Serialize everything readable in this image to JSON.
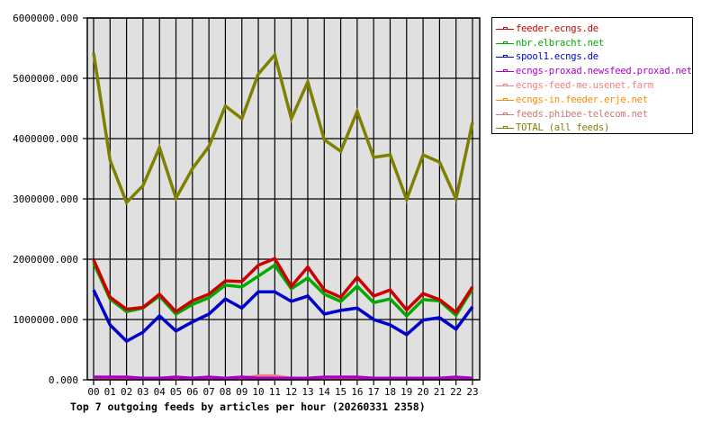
{
  "chart_data": {
    "type": "line",
    "title": "Top 7 outgoing feeds by articles per hour (20260331 2358)",
    "xlabel": "",
    "ylabel": "",
    "ylim": [
      0,
      6000000
    ],
    "yticks": [
      "0.000",
      "1000000.000",
      "2000000.000",
      "3000000.000",
      "4000000.000",
      "5000000.000",
      "6000000.000"
    ],
    "grid": true,
    "legend_position": "right",
    "categories": [
      "00",
      "01",
      "02",
      "03",
      "04",
      "05",
      "06",
      "07",
      "08",
      "09",
      "10",
      "11",
      "12",
      "13",
      "14",
      "15",
      "16",
      "17",
      "18",
      "19",
      "20",
      "21",
      "22",
      "23"
    ],
    "series": [
      {
        "name": "feeder.ecngs.de",
        "color": "#cc0000",
        "values": [
          1990000,
          1370000,
          1170000,
          1200000,
          1420000,
          1130000,
          1310000,
          1420000,
          1640000,
          1630000,
          1900000,
          2010000,
          1550000,
          1870000,
          1490000,
          1370000,
          1700000,
          1390000,
          1490000,
          1160000,
          1430000,
          1330000,
          1120000,
          1540000
        ]
      },
      {
        "name": "nbr.elbracht.net",
        "color": "#00aa00",
        "values": [
          1940000,
          1340000,
          1130000,
          1190000,
          1390000,
          1090000,
          1250000,
          1360000,
          1570000,
          1540000,
          1720000,
          1900000,
          1510000,
          1690000,
          1420000,
          1300000,
          1550000,
          1280000,
          1340000,
          1060000,
          1330000,
          1310000,
          1070000,
          1510000
        ]
      },
      {
        "name": "spool1.ecngs.de",
        "color": "#0000cc",
        "values": [
          1490000,
          910000,
          640000,
          790000,
          1060000,
          810000,
          960000,
          1090000,
          1340000,
          1190000,
          1460000,
          1460000,
          1300000,
          1390000,
          1090000,
          1150000,
          1190000,
          1000000,
          910000,
          750000,
          990000,
          1030000,
          840000,
          1210000
        ]
      },
      {
        "name": "ecngs-proxad.newsfeed.proxad.net",
        "color": "#aa00cc",
        "values": [
          45000,
          45000,
          45000,
          25000,
          25000,
          45000,
          25000,
          45000,
          25000,
          45000,
          25000,
          25000,
          25000,
          25000,
          45000,
          45000,
          45000,
          25000,
          25000,
          25000,
          25000,
          25000,
          45000,
          25000
        ]
      },
      {
        "name": "ecngs-feed-me.usenet.farm",
        "color": "#f08080",
        "values": [
          25000,
          25000,
          25000,
          25000,
          25000,
          25000,
          25000,
          25000,
          25000,
          25000,
          65000,
          65000,
          25000,
          25000,
          25000,
          25000,
          25000,
          25000,
          25000,
          25000,
          25000,
          25000,
          25000,
          25000
        ]
      },
      {
        "name": "ecngs-in.feeder.erje.net",
        "color": "#ff8800",
        "values": [
          15000,
          15000,
          15000,
          15000,
          15000,
          15000,
          15000,
          15000,
          15000,
          15000,
          15000,
          15000,
          15000,
          15000,
          15000,
          15000,
          15000,
          15000,
          15000,
          15000,
          15000,
          15000,
          15000,
          15000
        ]
      },
      {
        "name": "feeds.phibee-telecom.net",
        "color": "#cc7777",
        "values": [
          20000,
          20000,
          20000,
          20000,
          20000,
          20000,
          20000,
          20000,
          20000,
          20000,
          20000,
          20000,
          20000,
          20000,
          20000,
          20000,
          20000,
          20000,
          20000,
          20000,
          20000,
          20000,
          20000,
          20000
        ]
      },
      {
        "name": "TOTAL (all feeds)",
        "color": "#808000",
        "values": [
          5420000,
          3640000,
          2940000,
          3220000,
          3850000,
          3010000,
          3500000,
          3870000,
          4540000,
          4330000,
          5070000,
          5390000,
          4330000,
          4940000,
          3980000,
          3790000,
          4450000,
          3690000,
          3730000,
          2990000,
          3730000,
          3610000,
          3000000,
          4270000
        ]
      }
    ]
  },
  "legend": {
    "items": [
      {
        "label": "feeder.ecngs.de",
        "color": "#cc0000"
      },
      {
        "label": "nbr.elbracht.net",
        "color": "#00aa00"
      },
      {
        "label": "spool1.ecngs.de",
        "color": "#0000cc"
      },
      {
        "label": "ecngs-proxad.newsfeed.proxad.net",
        "color": "#aa00cc"
      },
      {
        "label": "ecngs-feed-me.usenet.farm",
        "color": "#f08080"
      },
      {
        "label": "ecngs-in.feeder.erje.net",
        "color": "#ff8800"
      },
      {
        "label": "feeds.phibee-telecom.net",
        "color": "#cc7777"
      },
      {
        "label": "TOTAL (all feeds)",
        "color": "#808000"
      }
    ]
  },
  "caption": "Top 7 outgoing feeds by articles per hour (20260331 2358)",
  "colors": {
    "plot_bg": "#e0e0e0",
    "grid": "#000000",
    "axis": "#000000"
  }
}
